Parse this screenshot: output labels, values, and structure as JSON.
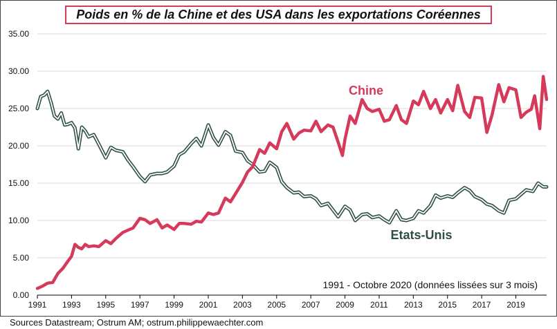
{
  "header": {
    "title": "Poids en % de la Chine et des USA dans les exportations Coréennes"
  },
  "footer": {
    "source": "Sources Datastream; Ostrum AM; ostrum.philippewaechter.com"
  },
  "colors": {
    "china": "#d63a5a",
    "usa_outer": "#2f4f45",
    "usa_inner": "#ffffff",
    "grid": "#d9d9d9",
    "axis": "#000000"
  },
  "chart_data": {
    "type": "line",
    "title": "Poids en % de la Chine et des USA dans les exportations Coréennes",
    "note": "1991 - Octobre 2020 (données lissées sur 3 mois)",
    "xlim": [
      1991,
      2020.8
    ],
    "ylim": [
      0,
      35
    ],
    "x_ticks": [
      1991,
      1993,
      1995,
      1997,
      1999,
      2001,
      2003,
      2005,
      2007,
      2009,
      2011,
      2013,
      2015,
      2017,
      2019
    ],
    "y_ticks": [
      0,
      5,
      10,
      15,
      20,
      25,
      30,
      35
    ],
    "y_tick_labels": [
      "0.00",
      "5.00",
      "10.00",
      "15.00",
      "20.00",
      "25.00",
      "30.00",
      "35.00"
    ],
    "grid": "horizontal",
    "series": [
      {
        "name": "Chine",
        "label": "Chine",
        "x": [
          1991.0,
          1991.3,
          1991.6,
          1991.9,
          1992.2,
          1992.5,
          1992.8,
          1993.0,
          1993.2,
          1993.4,
          1993.6,
          1993.8,
          1994.0,
          1994.3,
          1994.6,
          1995.0,
          1995.3,
          1995.6,
          1996.0,
          1996.3,
          1996.6,
          1997.0,
          1997.3,
          1997.6,
          1998.0,
          1998.3,
          1998.6,
          1999.0,
          1999.3,
          1999.6,
          2000.0,
          2000.3,
          2000.6,
          2001.0,
          2001.3,
          2001.6,
          2002.0,
          2002.3,
          2002.6,
          2003.0,
          2003.3,
          2003.6,
          2004.0,
          2004.3,
          2004.6,
          2005.0,
          2005.3,
          2005.6,
          2006.0,
          2006.3,
          2006.6,
          2007.0,
          2007.3,
          2007.6,
          2008.0,
          2008.3,
          2008.6,
          2008.85,
          2009.0,
          2009.3,
          2009.6,
          2010.0,
          2010.3,
          2010.6,
          2011.0,
          2011.3,
          2011.6,
          2012.0,
          2012.3,
          2012.6,
          2013.0,
          2013.3,
          2013.6,
          2014.0,
          2014.3,
          2014.6,
          2015.0,
          2015.3,
          2015.6,
          2016.0,
          2016.3,
          2016.6,
          2017.0,
          2017.3,
          2017.6,
          2018.0,
          2018.3,
          2018.6,
          2019.0,
          2019.3,
          2019.6,
          2019.9,
          2020.1,
          2020.4,
          2020.6,
          2020.8
        ],
        "y": [
          0.9,
          1.2,
          1.6,
          1.7,
          2.9,
          3.6,
          4.6,
          5.2,
          6.8,
          6.4,
          6.2,
          6.8,
          6.5,
          6.6,
          6.5,
          7.3,
          6.9,
          7.6,
          8.4,
          8.7,
          9.0,
          10.3,
          10.1,
          9.6,
          10.1,
          9.0,
          9.4,
          8.8,
          9.6,
          9.6,
          9.5,
          9.9,
          9.8,
          11.0,
          10.8,
          11.0,
          13.0,
          12.5,
          13.6,
          15.1,
          16.5,
          17.2,
          19.5,
          19.0,
          20.4,
          19.6,
          21.9,
          23.0,
          20.9,
          21.7,
          22.1,
          22.0,
          23.3,
          21.9,
          22.8,
          22.5,
          20.5,
          18.7,
          20.9,
          24.0,
          23.0,
          26.2,
          25.0,
          24.6,
          24.9,
          23.3,
          23.5,
          25.4,
          23.5,
          23.0,
          26.0,
          25.5,
          27.3,
          25.0,
          26.2,
          24.4,
          26.2,
          24.7,
          28.1,
          24.6,
          23.8,
          26.5,
          26.4,
          21.8,
          24.1,
          28.2,
          25.9,
          27.8,
          27.5,
          23.8,
          24.5,
          24.9,
          26.7,
          22.3,
          29.3,
          26.2
        ]
      },
      {
        "name": "Etats-Unis",
        "label": "Etats-Unis",
        "x": [
          1991.0,
          1991.2,
          1991.4,
          1991.6,
          1991.8,
          1992.0,
          1992.2,
          1992.4,
          1992.6,
          1992.8,
          1993.0,
          1993.2,
          1993.4,
          1993.6,
          1993.8,
          1994.0,
          1994.3,
          1994.6,
          1995.0,
          1995.3,
          1995.6,
          1996.0,
          1996.3,
          1996.6,
          1997.0,
          1997.3,
          1997.6,
          1998.0,
          1998.3,
          1998.6,
          1999.0,
          1999.3,
          1999.6,
          2000.0,
          2000.3,
          2000.6,
          2001.0,
          2001.3,
          2001.6,
          2002.0,
          2002.3,
          2002.6,
          2003.0,
          2003.3,
          2003.6,
          2004.0,
          2004.3,
          2004.6,
          2005.0,
          2005.3,
          2005.6,
          2006.0,
          2006.3,
          2006.6,
          2007.0,
          2007.3,
          2007.6,
          2008.0,
          2008.3,
          2008.6,
          2009.0,
          2009.3,
          2009.6,
          2010.0,
          2010.3,
          2010.6,
          2011.0,
          2011.3,
          2011.6,
          2012.0,
          2012.3,
          2012.6,
          2013.0,
          2013.3,
          2013.6,
          2014.0,
          2014.3,
          2014.6,
          2015.0,
          2015.3,
          2015.6,
          2016.0,
          2016.3,
          2016.6,
          2017.0,
          2017.3,
          2017.6,
          2018.0,
          2018.3,
          2018.6,
          2019.0,
          2019.3,
          2019.6,
          2020.0,
          2020.3,
          2020.6,
          2020.8
        ],
        "y": [
          25.0,
          26.6,
          26.8,
          27.3,
          25.8,
          24.0,
          23.6,
          24.4,
          22.8,
          22.9,
          23.1,
          22.4,
          19.6,
          22.5,
          22.0,
          21.2,
          21.5,
          20.2,
          18.4,
          19.8,
          19.4,
          19.2,
          18.1,
          17.2,
          15.9,
          15.2,
          16.1,
          16.3,
          16.3,
          16.5,
          17.3,
          18.8,
          19.2,
          20.3,
          21.0,
          20.0,
          22.8,
          21.1,
          20.1,
          21.9,
          21.4,
          19.3,
          19.1,
          18.0,
          17.5,
          16.5,
          16.6,
          17.8,
          17.1,
          15.2,
          14.4,
          13.7,
          13.8,
          13.2,
          13.3,
          12.9,
          12.0,
          12.3,
          11.4,
          10.5,
          11.9,
          11.4,
          10.0,
          10.8,
          10.9,
          10.4,
          10.6,
          10.1,
          9.7,
          11.3,
          10.1,
          10.0,
          10.3,
          11.3,
          11.0,
          12.0,
          13.4,
          13.0,
          13.3,
          13.1,
          13.7,
          14.4,
          14.0,
          13.2,
          12.8,
          12.2,
          12.0,
          11.3,
          11.0,
          12.7,
          12.9,
          13.5,
          14.1,
          13.9,
          15.0,
          14.5,
          14.5
        ]
      }
    ]
  }
}
